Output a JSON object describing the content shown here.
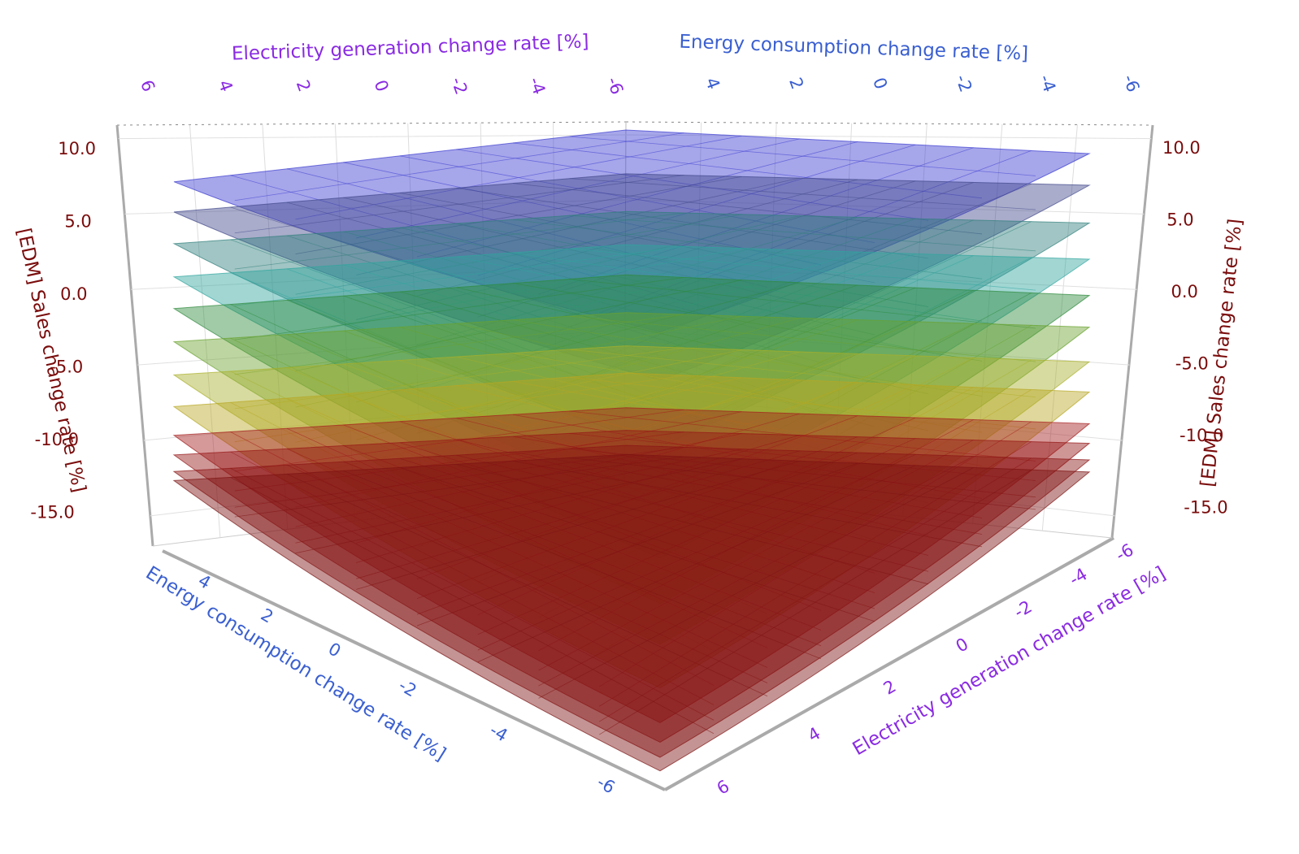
{
  "chart_data": {
    "type": "surface-3d-layers",
    "x_axis": {
      "label": "Energy consumption change rate [%]",
      "ticks": [
        "4",
        "2",
        "0",
        "-2",
        "-4",
        "-6"
      ],
      "range": [
        -6,
        6
      ]
    },
    "y_axis": {
      "label": "Electricity generation change rate [%]",
      "ticks": [
        "6",
        "4",
        "2",
        "0",
        "-2",
        "-4",
        "-6"
      ],
      "range": [
        -6,
        6
      ]
    },
    "z_axis": {
      "label": "[EDM] Sales change rate [%]",
      "ticks": [
        "10.0",
        "5.0",
        "0.0",
        "-5.0",
        "-10.0",
        "-15.0"
      ],
      "range": [
        -17,
        11
      ]
    },
    "grid": true,
    "layers": [
      {
        "color": "#3a3ad0",
        "back": 9.6,
        "left": 8.0,
        "right": 8.9,
        "front": 8.4,
        "center": 8.3
      },
      {
        "color": "#40478a",
        "back": 6.7,
        "left": 6.0,
        "right": 6.8,
        "front": 5.2,
        "center": 5.3
      },
      {
        "color": "#2f7f7c",
        "back": 4.2,
        "left": 3.9,
        "right": 4.3,
        "front": 0.8,
        "center": 1.6
      },
      {
        "color": "#2fa59e",
        "back": 2.0,
        "left": 1.7,
        "right": 1.9,
        "front": -3.2,
        "center": -1.3
      },
      {
        "color": "#2e8a3c",
        "back": 0.0,
        "left": -0.4,
        "right": -0.5,
        "front": -6.6,
        "center": -4.2
      },
      {
        "color": "#6aa22e",
        "back": -2.5,
        "left": -2.6,
        "right": -2.6,
        "front": -9.6,
        "center": -6.7
      },
      {
        "color": "#a8b02a",
        "back": -4.7,
        "left": -4.8,
        "right": -4.9,
        "front": -12.3,
        "center": -9.0
      },
      {
        "color": "#b8a622",
        "back": -6.5,
        "left": -6.9,
        "right": -6.9,
        "front": -15.2,
        "center": -11.4
      },
      {
        "color": "#a51c1c",
        "back": -8.8,
        "left": -8.8,
        "right": -9.0,
        "front": -17.5,
        "center": -13.6
      },
      {
        "color": "#951616",
        "back": -10.3,
        "left": -10.1,
        "right": -10.3,
        "front": -18.8,
        "center": -14.8
      },
      {
        "color": "#8a1414",
        "back": -11.3,
        "left": -11.2,
        "right": -11.4,
        "front": -19.8,
        "center": -15.7
      },
      {
        "color": "#7d1212",
        "back": -11.9,
        "left": -11.8,
        "right": -12.2,
        "front": -20.7,
        "center": -16.3
      }
    ]
  },
  "colors": {
    "z_axis": "#7a0c0c",
    "electricity_axis": "#8a2be2",
    "energy_axis": "#3a5fd0"
  }
}
